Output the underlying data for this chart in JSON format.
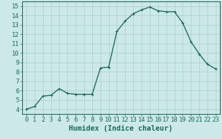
{
  "title": "",
  "xlabel": "Humidex (Indice chaleur)",
  "ylabel": "",
  "x_values": [
    0,
    1,
    2,
    3,
    4,
    5,
    6,
    7,
    8,
    9,
    10,
    11,
    12,
    13,
    14,
    15,
    16,
    17,
    18,
    19,
    20,
    21,
    22,
    23
  ],
  "y_values": [
    4.0,
    4.3,
    5.4,
    5.5,
    6.2,
    5.7,
    5.6,
    5.6,
    5.6,
    8.4,
    8.5,
    12.3,
    13.4,
    14.2,
    14.6,
    14.9,
    14.5,
    14.4,
    14.4,
    13.2,
    11.2,
    9.9,
    8.8,
    8.3
  ],
  "xlim": [
    -0.5,
    23.5
  ],
  "ylim": [
    3.5,
    15.5
  ],
  "yticks": [
    4,
    5,
    6,
    7,
    8,
    9,
    10,
    11,
    12,
    13,
    14,
    15
  ],
  "xticks": [
    0,
    1,
    2,
    3,
    4,
    5,
    6,
    7,
    8,
    9,
    10,
    11,
    12,
    13,
    14,
    15,
    16,
    17,
    18,
    19,
    20,
    21,
    22,
    23
  ],
  "line_color": "#1a6b5a",
  "marker_color": "#1a6b5a",
  "bg_color": "#cce8e8",
  "grid_color": "#aacccc",
  "border_color": "#1a6b5a",
  "xlabel_fontsize": 7.5,
  "tick_fontsize": 6.5,
  "line_width": 1.0,
  "marker_size": 2.5
}
